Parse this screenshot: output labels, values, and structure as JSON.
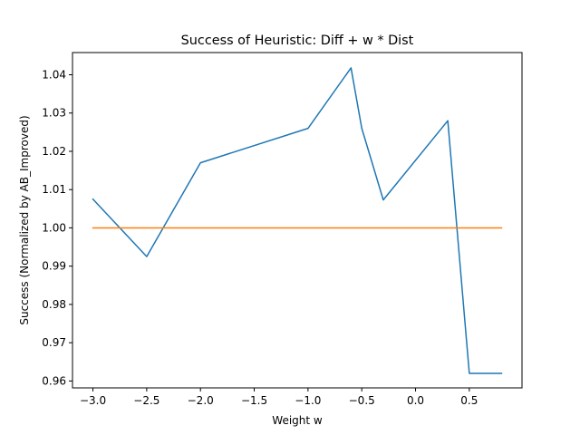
{
  "chart_data": {
    "type": "line",
    "title": "Success of Heuristic: Diff + w * Dist",
    "xlabel": "Weight w",
    "ylabel": "Success (Normalized by AB_Improved)",
    "xlim": [
      -3.19,
      0.99
    ],
    "ylim": [
      0.9582,
      1.0458
    ],
    "xticks": [
      -3.0,
      -2.5,
      -2.0,
      -1.5,
      -1.0,
      -0.5,
      0.0,
      0.5
    ],
    "xtick_labels": [
      "−3.0",
      "−2.5",
      "−2.0",
      "−1.5",
      "−1.0",
      "−0.5",
      "0.0",
      "0.5"
    ],
    "yticks": [
      0.96,
      0.97,
      0.98,
      0.99,
      1.0,
      1.01,
      1.02,
      1.03,
      1.04
    ],
    "ytick_labels": [
      "0.96",
      "0.97",
      "0.98",
      "0.99",
      "1.00",
      "1.01",
      "1.02",
      "1.03",
      "1.04"
    ],
    "grid": false,
    "legend": "none",
    "series": [
      {
        "color": "#1f77b4",
        "x": [
          -3.0,
          -2.5,
          -2.0,
          -1.0,
          -0.6,
          -0.5,
          -0.3,
          0.3,
          0.5,
          0.8
        ],
        "y": [
          1.0075,
          0.9925,
          1.017,
          1.026,
          1.0418,
          1.026,
          1.0073,
          1.028,
          0.962,
          0.962
        ]
      },
      {
        "color": "#ff7f0e",
        "x": [
          -3.0,
          0.8
        ],
        "y": [
          1.0,
          1.0
        ]
      }
    ]
  }
}
